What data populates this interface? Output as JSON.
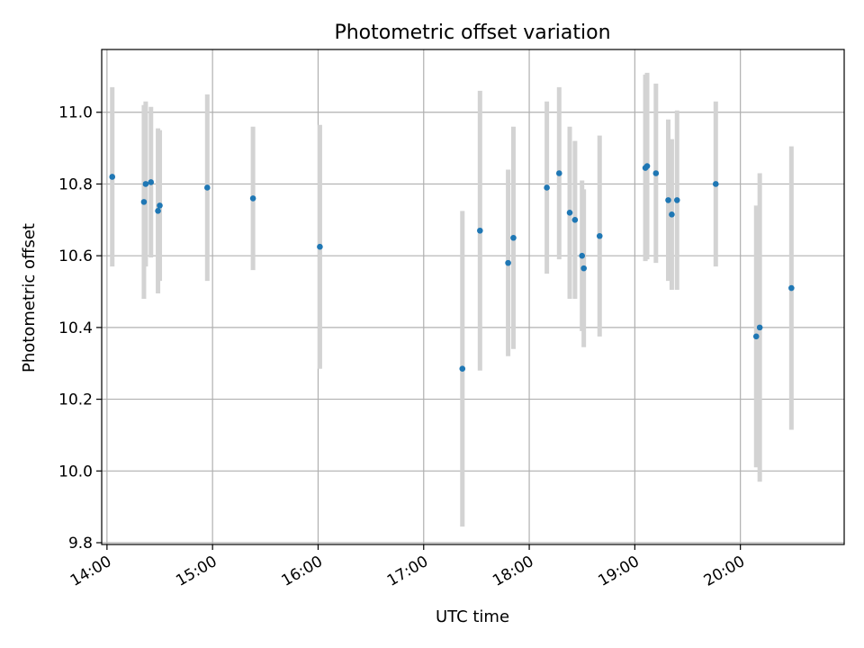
{
  "chart_data": {
    "type": "scatter",
    "title": "Photometric offset variation",
    "xlabel": "UTC time",
    "ylabel": "Photometric offset",
    "xlim": [
      "13:57",
      "20:59"
    ],
    "ylim": [
      9.795,
      11.175
    ],
    "grid": true,
    "x_ticks": [
      "14:00",
      "15:00",
      "16:00",
      "17:00",
      "18:00",
      "19:00",
      "20:00"
    ],
    "y_ticks": [
      "9.8",
      "10.0",
      "10.2",
      "10.4",
      "10.6",
      "10.8",
      "11.0"
    ],
    "colors": {
      "point": "#1f77b4",
      "errorbar": "#d3d3d3",
      "grid": "#b0b0b0"
    },
    "series": [
      {
        "points": [
          {
            "x": "14:03",
            "y": 10.82,
            "err": 0.25
          },
          {
            "x": "14:21",
            "y": 10.75,
            "err": 0.27
          },
          {
            "x": "14:22",
            "y": 10.8,
            "err": 0.23
          },
          {
            "x": "14:25",
            "y": 10.805,
            "err": 0.21
          },
          {
            "x": "14:29",
            "y": 10.725,
            "err": 0.23
          },
          {
            "x": "14:30",
            "y": 10.74,
            "err": 0.21
          },
          {
            "x": "14:57",
            "y": 10.79,
            "err": 0.26
          },
          {
            "x": "15:23",
            "y": 10.76,
            "err": 0.2
          },
          {
            "x": "16:01",
            "y": 10.625,
            "err": 0.34
          },
          {
            "x": "17:22",
            "y": 10.285,
            "err": 0.44
          },
          {
            "x": "17:32",
            "y": 10.67,
            "err": 0.39
          },
          {
            "x": "17:48",
            "y": 10.58,
            "err": 0.26
          },
          {
            "x": "17:51",
            "y": 10.65,
            "err": 0.31
          },
          {
            "x": "18:10",
            "y": 10.79,
            "err": 0.24
          },
          {
            "x": "18:17",
            "y": 10.83,
            "err": 0.24
          },
          {
            "x": "18:23",
            "y": 10.72,
            "err": 0.24
          },
          {
            "x": "18:26",
            "y": 10.7,
            "err": 0.22
          },
          {
            "x": "18:30",
            "y": 10.6,
            "err": 0.21
          },
          {
            "x": "18:31",
            "y": 10.565,
            "err": 0.22
          },
          {
            "x": "18:40",
            "y": 10.655,
            "err": 0.28
          },
          {
            "x": "19:06",
            "y": 10.845,
            "err": 0.26
          },
          {
            "x": "19:07",
            "y": 10.85,
            "err": 0.26
          },
          {
            "x": "19:12",
            "y": 10.83,
            "err": 0.25
          },
          {
            "x": "19:19",
            "y": 10.755,
            "err": 0.225
          },
          {
            "x": "19:21",
            "y": 10.715,
            "err": 0.21
          },
          {
            "x": "19:24",
            "y": 10.755,
            "err": 0.25
          },
          {
            "x": "19:46",
            "y": 10.8,
            "err": 0.23
          },
          {
            "x": "20:09",
            "y": 10.375,
            "err": 0.365
          },
          {
            "x": "20:11",
            "y": 10.4,
            "err": 0.43
          },
          {
            "x": "20:29",
            "y": 10.51,
            "err": 0.395
          }
        ]
      }
    ]
  }
}
